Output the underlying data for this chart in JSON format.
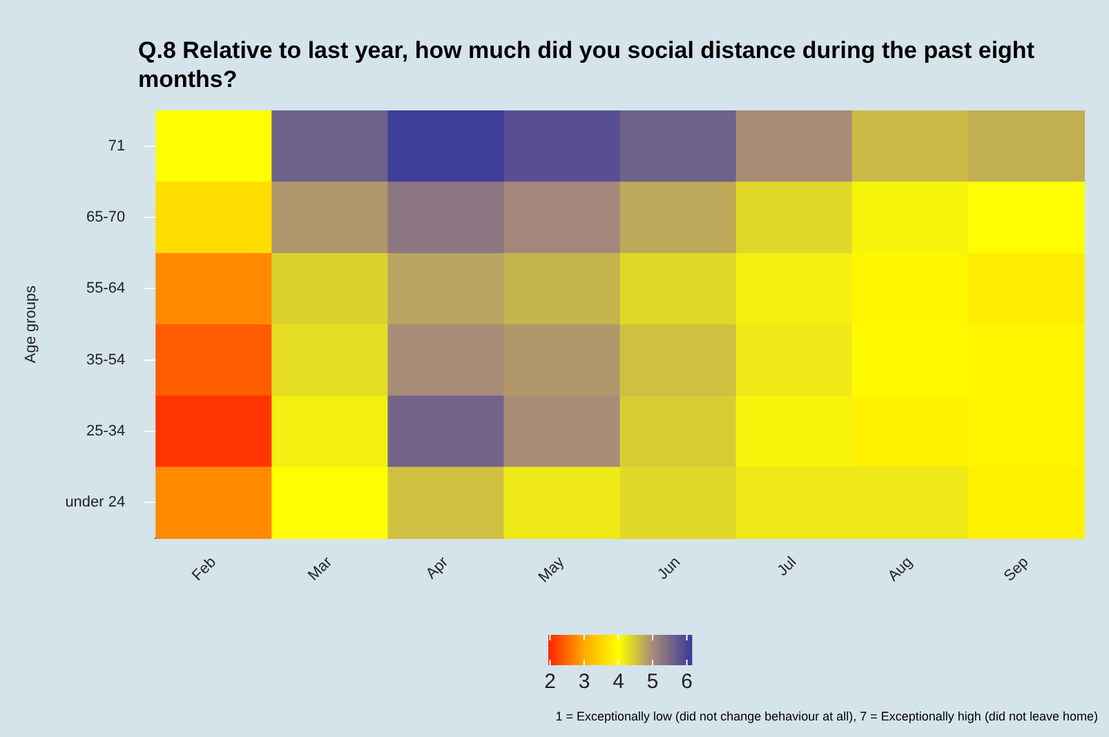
{
  "chart_data": {
    "type": "heatmap",
    "title": "Q.8 Relative to last year, how much did you social distance during the past eight months?",
    "ylabel": "Age groups",
    "categories": [
      "Feb",
      "Mar",
      "Apr",
      "May",
      "Jun",
      "Jul",
      "Aug",
      "Sep"
    ],
    "y_categories": [
      "71",
      "65-70",
      "55-64",
      "35-54",
      "25-34",
      "under 24"
    ],
    "cells": [
      [
        4.0,
        5.6,
        6.1,
        5.85,
        5.6,
        5.0,
        4.6,
        4.7
      ],
      [
        3.6,
        4.9,
        5.3,
        5.05,
        4.75,
        4.35,
        4.1,
        4.0
      ],
      [
        2.75,
        4.4,
        4.8,
        4.65,
        4.35,
        4.15,
        3.9,
        3.8
      ],
      [
        2.4,
        4.3,
        5.0,
        4.9,
        4.55,
        4.2,
        3.95,
        3.9
      ],
      [
        2.1,
        4.15,
        5.55,
        5.0,
        4.45,
        4.1,
        3.85,
        3.9
      ],
      [
        2.75,
        4.0,
        4.55,
        4.2,
        4.35,
        4.2,
        4.2,
        3.85
      ]
    ],
    "clim": [
      1.95,
      6.15
    ],
    "cticks": [
      2,
      3,
      4,
      5,
      6
    ],
    "annotations": [
      "1 = Exceptionally low (did not change behaviour at all), 7 = Exceptionally high (did not leave home)"
    ]
  }
}
